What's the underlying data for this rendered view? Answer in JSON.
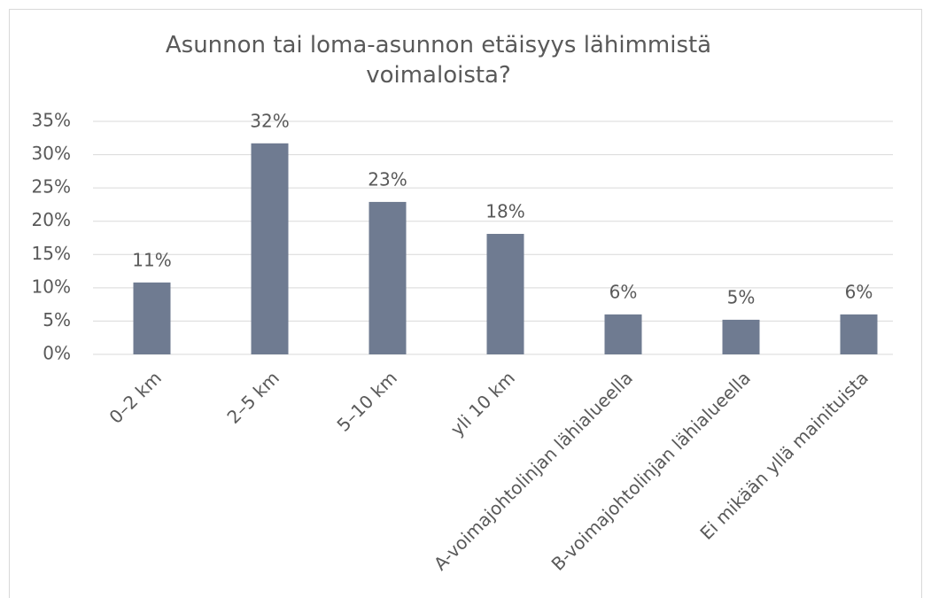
{
  "chart_data": {
    "type": "bar",
    "title": "Asunnon tai loma-asunnon etäisyys lähimmistä voimaloista?",
    "categories": [
      "0–2 km",
      "2–5 km",
      "5–10 km",
      "yli 10 km",
      "A-voimajohtolinjan lähialueella",
      "B-voimajohtolinjan lähialueella",
      "Ei mikään yllä mainituista"
    ],
    "values": [
      10.8,
      31.7,
      22.9,
      18.1,
      6.0,
      5.2,
      6.0
    ],
    "value_labels": [
      "11%",
      "32%",
      "23%",
      "18%",
      "6%",
      "5%",
      "6%"
    ],
    "color": "#6f7b91",
    "ylim": [
      0,
      35
    ],
    "yticks": [
      {
        "value": 0,
        "label": "0%"
      },
      {
        "value": 5,
        "label": "5%"
      },
      {
        "value": 10,
        "label": "10%"
      },
      {
        "value": 15,
        "label": "15%"
      },
      {
        "value": 20,
        "label": "20%"
      },
      {
        "value": 25,
        "label": "25%"
      },
      {
        "value": 30,
        "label": "30%"
      },
      {
        "value": 35,
        "label": "35%"
      }
    ],
    "grid": true
  }
}
